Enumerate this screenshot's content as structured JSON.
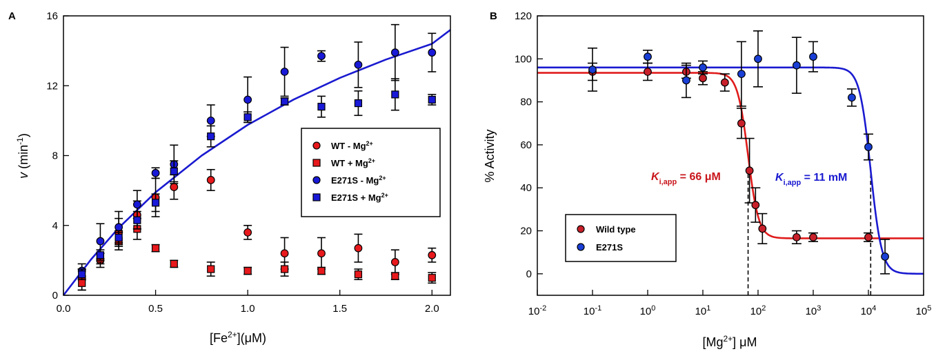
{
  "chart_data": [
    {
      "type": "scatter",
      "panel_label": "A",
      "xlabel": "[Fe2+](μM)",
      "ylabel": "v (min-1)",
      "xlim": [
        0,
        2.1
      ],
      "ylim": [
        0,
        16
      ],
      "x_ticks": [
        "0.0",
        "0.5",
        "1.0",
        "1.5",
        "2.0"
      ],
      "y_ticks": [
        "0",
        "4",
        "8",
        "12",
        "16"
      ],
      "grid": false,
      "legend_position": "center-right",
      "colors": {
        "red": "#e8191c",
        "blue": "#1919d8",
        "curve": "#1a1ad0"
      },
      "series": [
        {
          "name": "WT - Mg2+",
          "marker": "circle",
          "color": "#e8191c",
          "x": [
            0.1,
            0.2,
            0.3,
            0.4,
            0.5,
            0.6,
            0.8,
            1.0,
            1.2,
            1.4,
            1.6,
            1.8,
            2.0
          ],
          "y": [
            0.9,
            2.0,
            3.6,
            4.6,
            5.6,
            6.2,
            6.6,
            3.6,
            2.4,
            2.4,
            2.7,
            1.9,
            2.3
          ],
          "err": [
            0.6,
            0.4,
            0.8,
            0.8,
            1.1,
            0.7,
            0.6,
            0.4,
            0.9,
            0.9,
            0.8,
            0.7,
            0.4
          ]
        },
        {
          "name": "WT + Mg2+",
          "marker": "square",
          "color": "#e8191c",
          "x": [
            0.1,
            0.2,
            0.3,
            0.4,
            0.5,
            0.6,
            0.8,
            1.0,
            1.2,
            1.4,
            1.6,
            1.8,
            2.0
          ],
          "y": [
            0.7,
            2.1,
            3.1,
            3.8,
            2.7,
            1.8,
            1.5,
            1.4,
            1.5,
            1.4,
            1.2,
            1.1,
            1.0
          ],
          "err": [
            0.4,
            0.3,
            0.5,
            0.6,
            0.2,
            0.2,
            0.4,
            0.2,
            0.4,
            0.2,
            0.3,
            0.2,
            0.3
          ]
        },
        {
          "name": "E271S - Mg2+",
          "marker": "circle",
          "color": "#1919d8",
          "x": [
            0.1,
            0.2,
            0.3,
            0.4,
            0.5,
            0.6,
            0.8,
            1.0,
            1.2,
            1.4,
            1.6,
            1.8,
            2.0
          ],
          "y": [
            1.4,
            3.1,
            3.9,
            5.2,
            7.0,
            7.5,
            10.0,
            11.2,
            12.8,
            13.7,
            13.2,
            13.9,
            13.9
          ],
          "err": [
            0.4,
            1.0,
            0.9,
            0.8,
            0.3,
            1.1,
            0.9,
            1.3,
            1.4,
            0.3,
            1.3,
            1.6,
            1.1
          ]
        },
        {
          "name": "E271S + Mg2+",
          "marker": "square",
          "color": "#1919d8",
          "x": [
            0.1,
            0.2,
            0.3,
            0.4,
            0.5,
            0.6,
            0.8,
            1.0,
            1.2,
            1.4,
            1.6,
            1.8,
            2.0
          ],
          "y": [
            1.2,
            2.3,
            3.3,
            4.3,
            5.3,
            7.1,
            9.1,
            10.2,
            11.1,
            10.8,
            11.0,
            11.5,
            11.2
          ],
          "err": [
            0.3,
            0.3,
            0.4,
            0.5,
            0.5,
            0.6,
            0.6,
            0.3,
            0.2,
            0.6,
            0.7,
            0.9,
            0.3
          ]
        }
      ],
      "fit_curve": {
        "color": "#1a1ad0",
        "x": [
          0,
          0.15,
          0.3,
          0.5,
          0.75,
          1.0,
          1.25,
          1.5,
          1.75,
          2.0,
          2.1
        ],
        "y": [
          0,
          2.06,
          3.86,
          5.9,
          8.0,
          9.76,
          11.21,
          12.45,
          13.5,
          14.4,
          15.2
        ]
      }
    },
    {
      "type": "scatter",
      "panel_label": "B",
      "xlabel": "[Mg2+] μM",
      "ylabel": "% Activity",
      "xscale": "log",
      "xlim": [
        0.01,
        100000
      ],
      "ylim": [
        -10,
        120
      ],
      "x_ticks": [
        {
          "base": "10",
          "exp": "-2"
        },
        {
          "base": "10",
          "exp": "-1"
        },
        {
          "base": "10",
          "exp": "0"
        },
        {
          "base": "10",
          "exp": "1"
        },
        {
          "base": "10",
          "exp": "2"
        },
        {
          "base": "10",
          "exp": "3"
        },
        {
          "base": "10",
          "exp": "4"
        },
        {
          "base": "10",
          "exp": "5"
        }
      ],
      "y_ticks": [
        "0",
        "20",
        "40",
        "60",
        "80",
        "100",
        "120"
      ],
      "grid": false,
      "legend_position": "bottom-left",
      "series": [
        {
          "name": "Wild type",
          "color": "#c8202a",
          "x": [
            0.1,
            1,
            5,
            10,
            25,
            50,
            70,
            90,
            120,
            500,
            1000,
            10000
          ],
          "y": [
            94,
            94,
            94,
            91,
            89,
            70,
            48,
            32,
            21,
            17,
            17,
            17
          ],
          "err": [
            4,
            4,
            3,
            3,
            4,
            7,
            15,
            8,
            7,
            3,
            2,
            2
          ]
        },
        {
          "name": "E271S",
          "color": "#1a3fd6",
          "x": [
            0.1,
            1,
            5,
            10,
            50,
            100,
            500,
            1000,
            5000,
            10000,
            20000
          ],
          "y": [
            95,
            101,
            90,
            96,
            93,
            100,
            97,
            101,
            82,
            59,
            8
          ],
          "err": [
            10,
            3,
            8,
            3,
            15,
            13,
            13,
            7,
            4,
            6,
            8
          ]
        }
      ],
      "fit_curves": [
        {
          "name": "Wild type",
          "color": "#e01b1b",
          "top": 93.5,
          "bottom": 16.5,
          "ki": 66,
          "slope": 4.5
        },
        {
          "name": "E271S",
          "color": "#1a1ad0",
          "top": 96,
          "bottom": 0,
          "ki": 11000,
          "slope": 4.3
        }
      ],
      "dashed_lines_x": [
        66,
        11000
      ],
      "annotations": [
        {
          "K": "K",
          "sub": "i,app",
          "text": " = 66 μM",
          "color": "#c8151b"
        },
        {
          "K": "K",
          "sub": "i,app",
          "text": " = 11 mM",
          "color": "#1a1ad0"
        }
      ]
    }
  ]
}
